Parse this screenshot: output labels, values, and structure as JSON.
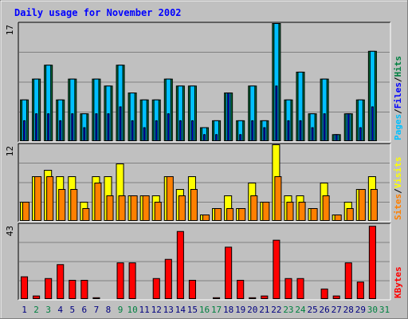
{
  "title": "Daily usage for November 2002",
  "colors": {
    "hits": "#008040",
    "files": "#0000ff",
    "pages": "#00c0ff",
    "visits": "#ffff00",
    "sites": "#ff8000",
    "kbytes": "#ff0000",
    "title": "#0000ff",
    "weekend": "#008040",
    "weekday": "#000080"
  },
  "chart_data": [
    {
      "type": "bar",
      "panel": "top",
      "y_max_label": "17",
      "ylim": [
        0,
        17
      ],
      "categories": [
        "1",
        "2",
        "3",
        "4",
        "5",
        "6",
        "7",
        "8",
        "9",
        "10",
        "11",
        "12",
        "13",
        "14",
        "15",
        "16",
        "17",
        "18",
        "19",
        "20",
        "21",
        "22",
        "23",
        "24",
        "25",
        "26",
        "27",
        "28",
        "29",
        "30",
        "31"
      ],
      "series": [
        {
          "name": "Hits",
          "values": [
            6,
            9,
            11,
            6,
            9,
            4,
            9,
            8,
            11,
            7,
            6,
            6,
            9,
            8,
            8,
            2,
            3,
            7,
            3,
            8,
            3,
            17,
            6,
            10,
            4,
            9,
            1,
            4,
            6,
            13,
            0
          ]
        },
        {
          "name": "Files",
          "values": [
            3,
            4,
            4,
            3,
            4,
            2,
            4,
            4,
            5,
            3,
            2,
            3,
            4,
            3,
            3,
            1,
            1,
            7,
            1,
            3,
            2,
            8,
            3,
            3,
            2,
            4,
            1,
            4,
            2,
            5,
            0
          ]
        },
        {
          "name": "Pages",
          "values": [
            6,
            9,
            11,
            6,
            9,
            4,
            9,
            8,
            11,
            7,
            6,
            6,
            9,
            8,
            8,
            2,
            3,
            7,
            3,
            8,
            3,
            17,
            6,
            10,
            4,
            9,
            1,
            4,
            6,
            13,
            0
          ]
        }
      ],
      "legend": [
        "Pages",
        "/",
        "Files",
        "/",
        "Hits"
      ]
    },
    {
      "type": "bar",
      "panel": "middle",
      "y_max_label": "12",
      "ylim": [
        0,
        12
      ],
      "categories": [
        "1",
        "2",
        "3",
        "4",
        "5",
        "6",
        "7",
        "8",
        "9",
        "10",
        "11",
        "12",
        "13",
        "14",
        "15",
        "16",
        "17",
        "18",
        "19",
        "20",
        "21",
        "22",
        "23",
        "24",
        "25",
        "26",
        "27",
        "28",
        "29",
        "30",
        "31"
      ],
      "series": [
        {
          "name": "Visits",
          "values": [
            3,
            7,
            8,
            7,
            7,
            3,
            7,
            7,
            9,
            4,
            4,
            4,
            7,
            5,
            7,
            1,
            2,
            4,
            2,
            6,
            3,
            12,
            4,
            4,
            2,
            6,
            1,
            3,
            5,
            7,
            0
          ]
        },
        {
          "name": "Sites",
          "values": [
            3,
            7,
            7,
            5,
            5,
            2,
            6,
            4,
            4,
            4,
            4,
            3,
            7,
            4,
            5,
            1,
            2,
            2,
            2,
            4,
            3,
            7,
            3,
            3,
            2,
            4,
            1,
            2,
            5,
            5,
            0
          ]
        }
      ],
      "legend": [
        "Sites",
        "/",
        "Visits"
      ]
    },
    {
      "type": "bar",
      "panel": "bottom",
      "y_max_label": "43",
      "ylim": [
        0,
        43
      ],
      "categories": [
        "1",
        "2",
        "3",
        "4",
        "5",
        "6",
        "7",
        "8",
        "9",
        "10",
        "11",
        "12",
        "13",
        "14",
        "15",
        "16",
        "17",
        "18",
        "19",
        "20",
        "21",
        "22",
        "23",
        "24",
        "25",
        "26",
        "27",
        "28",
        "29",
        "30",
        "31"
      ],
      "series": [
        {
          "name": "KBytes",
          "values": [
            13,
            2,
            12,
            20,
            11,
            11,
            1,
            0,
            21,
            21,
            0,
            12,
            23,
            39,
            11,
            0,
            1,
            30,
            11,
            1,
            2,
            34,
            12,
            12,
            0,
            6,
            2,
            21,
            10,
            42,
            0
          ]
        }
      ],
      "legend": [
        "KBytes"
      ]
    }
  ],
  "x_labels": [
    {
      "day": "1",
      "weekend": false
    },
    {
      "day": "2",
      "weekend": true
    },
    {
      "day": "3",
      "weekend": true
    },
    {
      "day": "4",
      "weekend": false
    },
    {
      "day": "5",
      "weekend": false
    },
    {
      "day": "6",
      "weekend": false
    },
    {
      "day": "7",
      "weekend": false
    },
    {
      "day": "8",
      "weekend": false
    },
    {
      "day": "9",
      "weekend": true
    },
    {
      "day": "10",
      "weekend": true
    },
    {
      "day": "11",
      "weekend": false
    },
    {
      "day": "12",
      "weekend": false
    },
    {
      "day": "13",
      "weekend": false
    },
    {
      "day": "14",
      "weekend": false
    },
    {
      "day": "15",
      "weekend": false
    },
    {
      "day": "16",
      "weekend": true
    },
    {
      "day": "17",
      "weekend": true
    },
    {
      "day": "18",
      "weekend": false
    },
    {
      "day": "19",
      "weekend": false
    },
    {
      "day": "20",
      "weekend": false
    },
    {
      "day": "21",
      "weekend": false
    },
    {
      "day": "22",
      "weekend": false
    },
    {
      "day": "23",
      "weekend": true
    },
    {
      "day": "24",
      "weekend": true
    },
    {
      "day": "25",
      "weekend": false
    },
    {
      "day": "26",
      "weekend": false
    },
    {
      "day": "27",
      "weekend": false
    },
    {
      "day": "28",
      "weekend": false
    },
    {
      "day": "29",
      "weekend": false
    },
    {
      "day": "30",
      "weekend": true
    },
    {
      "day": "31",
      "weekend": true
    }
  ]
}
